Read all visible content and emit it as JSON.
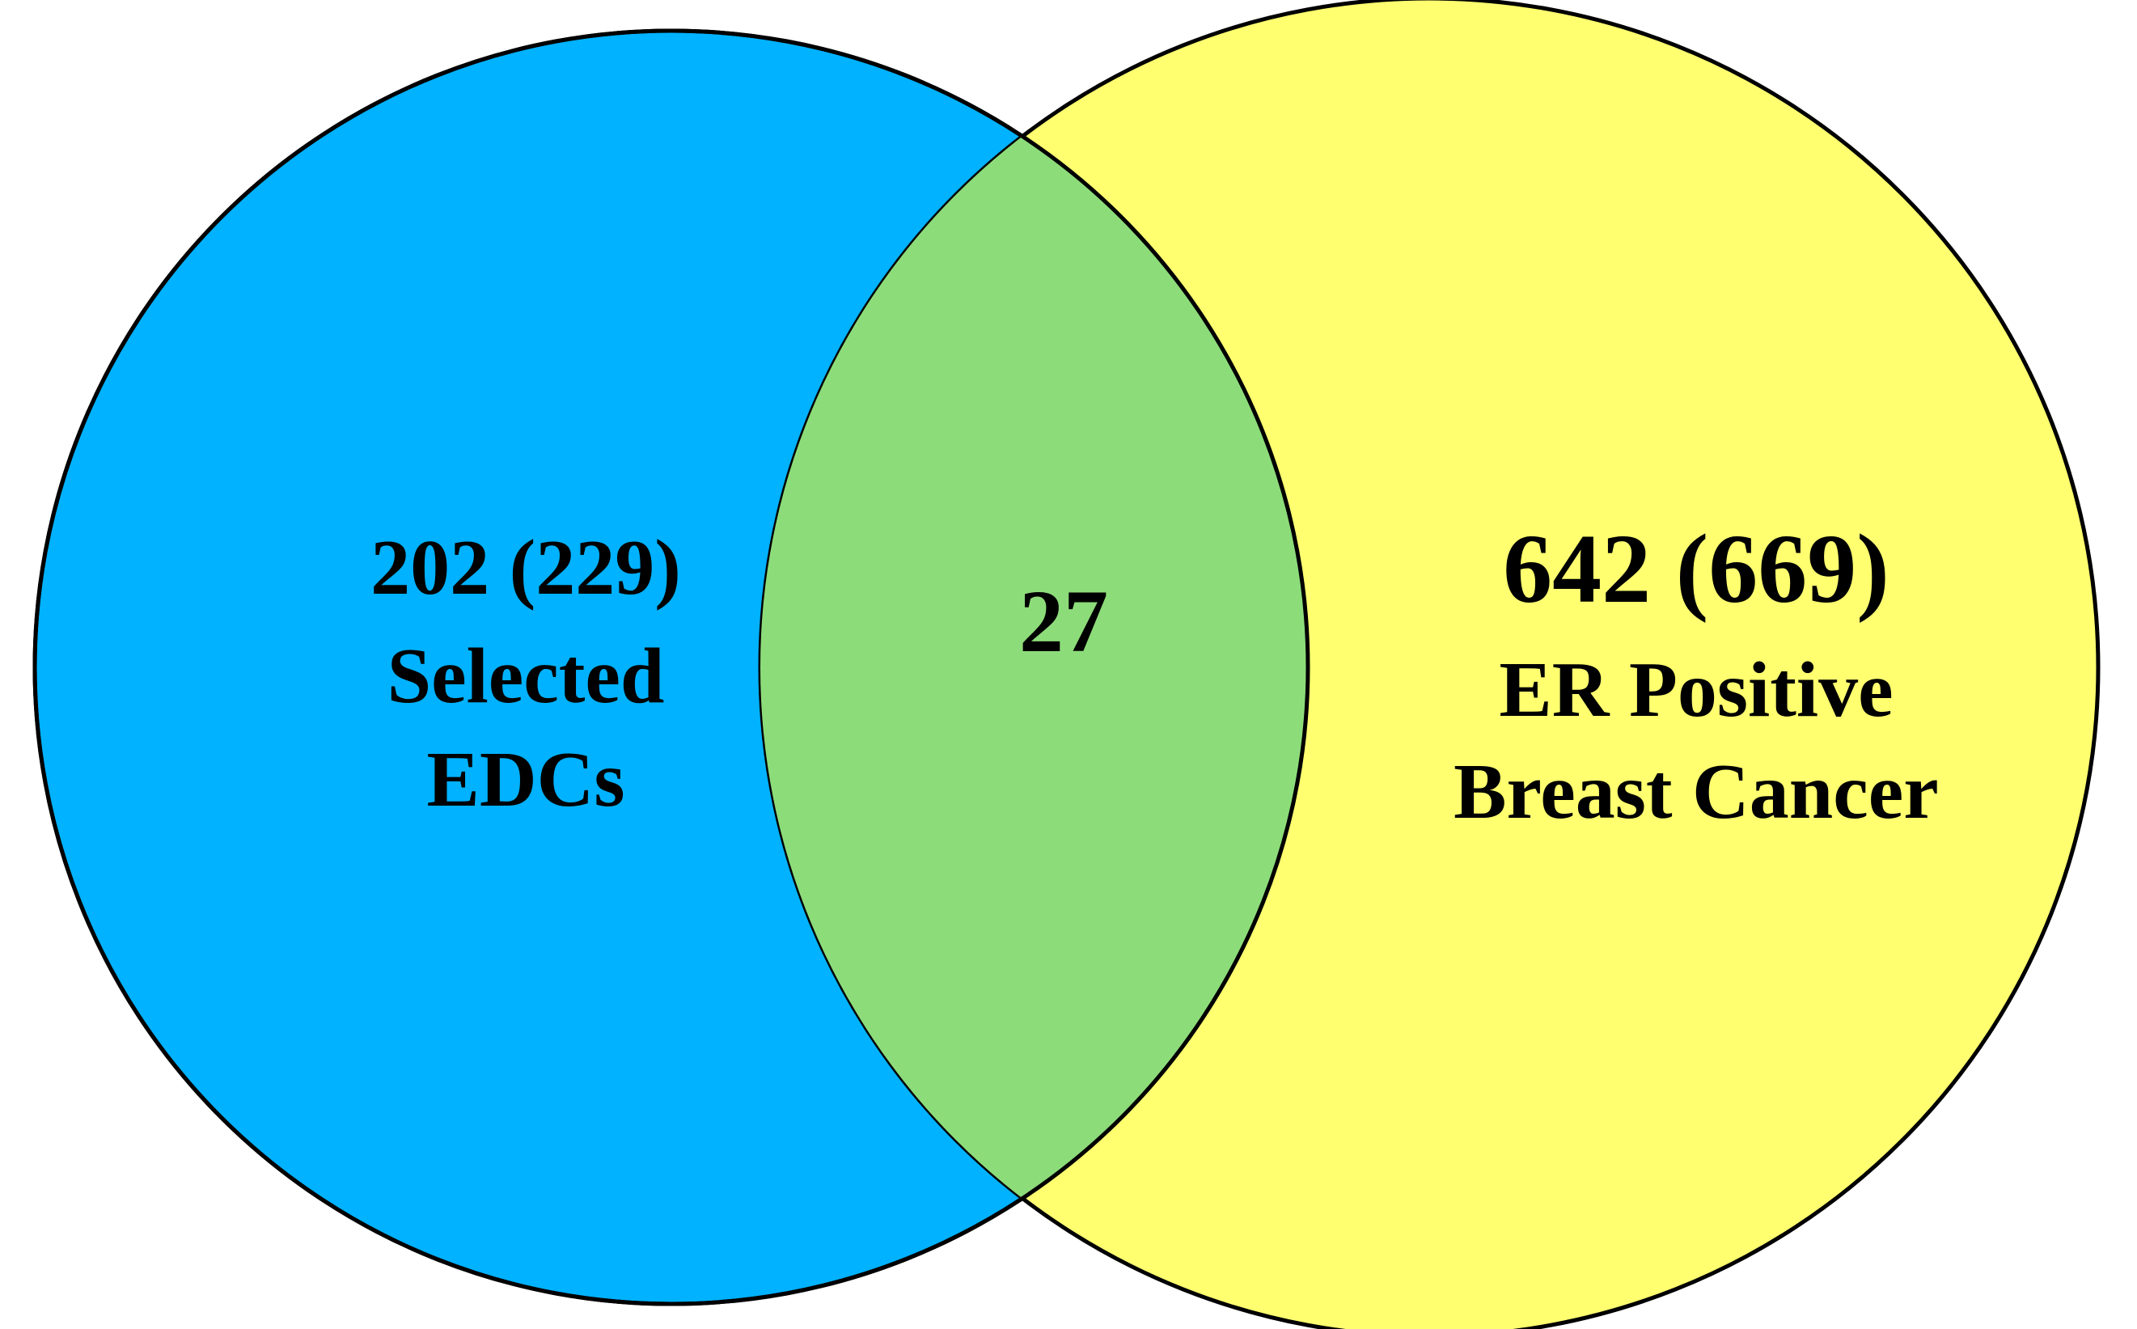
{
  "venn": {
    "left_set": {
      "count_line": "202 (229)",
      "label_line1": "Selected",
      "label_line2": "EDCs",
      "fill_color": "#00B2FF"
    },
    "right_set": {
      "count_line": "642 (669)",
      "label_line1": "ER Positive",
      "label_line2": "Breast Cancer",
      "fill_color": "#FFFF70"
    },
    "intersection": {
      "count": "27",
      "fill_color": "#8DDC7A"
    },
    "outline_color": "#000000"
  }
}
